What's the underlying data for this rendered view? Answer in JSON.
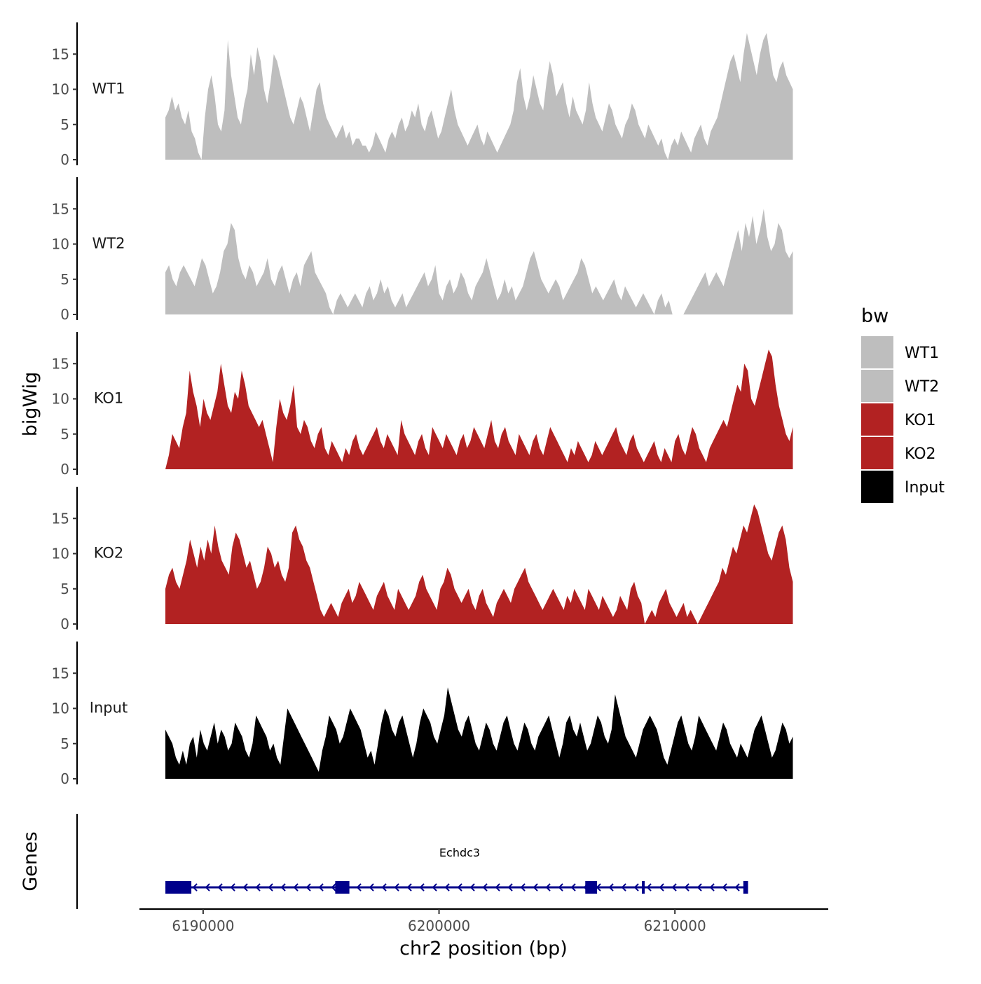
{
  "chart_data": {
    "type": "area",
    "title": "",
    "ylabel": "bigWig",
    "xlabel": "chr2 position (bp)",
    "xlim": [
      6187300,
      6216500
    ],
    "ylim": [
      0,
      19.5
    ],
    "yticks": [
      0,
      5,
      10,
      15
    ],
    "xticks": [
      6190000,
      6200000,
      6210000
    ],
    "x_start": 6188400,
    "x_end": 6215000,
    "legend": {
      "title": "bw",
      "placement": "right",
      "entries": [
        {
          "name": "WT1",
          "color": "#bebebe"
        },
        {
          "name": "WT2",
          "color": "#bebebe"
        },
        {
          "name": "KO1",
          "color": "#b22222"
        },
        {
          "name": "KO2",
          "color": "#b22222"
        },
        {
          "name": "Input",
          "color": "#000000"
        }
      ]
    },
    "series": [
      {
        "name": "WT1",
        "color": "#bebebe",
        "values": [
          6,
          7,
          9,
          7,
          8,
          6,
          5,
          7,
          4,
          3,
          1,
          0,
          6,
          10,
          12,
          9,
          5,
          4,
          7,
          17,
          12,
          9,
          6,
          5,
          8,
          10,
          15,
          12,
          16,
          14,
          10,
          8,
          11,
          15,
          14,
          12,
          10,
          8,
          6,
          5,
          7,
          9,
          8,
          6,
          4,
          7,
          10,
          11,
          8,
          6,
          5,
          4,
          3,
          4,
          5,
          3,
          4,
          2,
          3,
          3,
          2,
          2,
          1,
          2,
          4,
          3,
          2,
          1,
          3,
          4,
          3,
          5,
          6,
          4,
          5,
          7,
          6,
          8,
          5,
          4,
          6,
          7,
          5,
          3,
          4,
          6,
          8,
          10,
          7,
          5,
          4,
          3,
          2,
          3,
          4,
          5,
          3,
          2,
          4,
          3,
          2,
          1,
          2,
          3,
          4,
          5,
          7,
          11,
          13,
          9,
          7,
          9,
          12,
          10,
          8,
          7,
          11,
          14,
          12,
          9,
          10,
          11,
          8,
          6,
          9,
          7,
          6,
          5,
          7,
          11,
          8,
          6,
          5,
          4,
          6,
          8,
          7,
          5,
          4,
          3,
          5,
          6,
          8,
          7,
          5,
          4,
          3,
          5,
          4,
          3,
          2,
          3,
          1,
          0,
          2,
          3,
          2,
          4,
          3,
          2,
          1,
          3,
          4,
          5,
          3,
          2,
          4,
          5,
          6,
          8,
          10,
          12,
          14,
          15,
          13,
          11,
          15,
          18,
          16,
          14,
          12,
          15,
          17,
          18,
          15,
          12,
          11,
          13,
          14,
          12,
          11,
          10
        ]
      },
      {
        "name": "WT2",
        "color": "#bebebe",
        "values": [
          6,
          7,
          5,
          4,
          6,
          7,
          6,
          5,
          4,
          6,
          8,
          7,
          5,
          3,
          4,
          6,
          9,
          10,
          13,
          12,
          8,
          6,
          5,
          7,
          6,
          4,
          5,
          6,
          8,
          5,
          4,
          6,
          7,
          5,
          3,
          5,
          6,
          4,
          7,
          8,
          9,
          6,
          5,
          4,
          3,
          1,
          0,
          2,
          3,
          2,
          1,
          2,
          3,
          2,
          1,
          3,
          4,
          2,
          3,
          5,
          3,
          4,
          2,
          1,
          2,
          3,
          1,
          2,
          3,
          4,
          5,
          6,
          4,
          5,
          7,
          3,
          2,
          4,
          5,
          3,
          4,
          6,
          5,
          3,
          2,
          4,
          5,
          6,
          8,
          6,
          4,
          2,
          3,
          5,
          3,
          4,
          2,
          3,
          4,
          6,
          8,
          9,
          7,
          5,
          4,
          3,
          4,
          5,
          4,
          2,
          3,
          4,
          5,
          6,
          8,
          7,
          5,
          3,
          4,
          3,
          2,
          3,
          4,
          5,
          3,
          2,
          4,
          3,
          2,
          1,
          2,
          3,
          2,
          1,
          0,
          2,
          3,
          1,
          2,
          0,
          0,
          0,
          0,
          1,
          2,
          3,
          4,
          5,
          6,
          4,
          5,
          6,
          5,
          4,
          6,
          8,
          10,
          12,
          9,
          13,
          11,
          14,
          10,
          12,
          15,
          11,
          9,
          10,
          13,
          12,
          9,
          8,
          9
        ]
      },
      {
        "name": "KO1",
        "color": "#b22222",
        "values": [
          0,
          2,
          5,
          4,
          3,
          6,
          8,
          14,
          11,
          9,
          6,
          10,
          8,
          7,
          9,
          11,
          15,
          12,
          9,
          8,
          11,
          10,
          14,
          12,
          9,
          8,
          7,
          6,
          7,
          5,
          3,
          1,
          6,
          10,
          8,
          7,
          9,
          12,
          6,
          5,
          7,
          6,
          4,
          3,
          5,
          6,
          3,
          2,
          4,
          3,
          2,
          1,
          3,
          2,
          4,
          5,
          3,
          2,
          3,
          4,
          5,
          6,
          4,
          3,
          5,
          4,
          3,
          2,
          7,
          5,
          4,
          3,
          2,
          4,
          5,
          3,
          2,
          6,
          5,
          4,
          3,
          5,
          4,
          3,
          2,
          4,
          5,
          3,
          4,
          6,
          5,
          4,
          3,
          5,
          7,
          4,
          3,
          5,
          6,
          4,
          3,
          2,
          5,
          4,
          3,
          2,
          4,
          5,
          3,
          2,
          4,
          6,
          5,
          4,
          3,
          2,
          1,
          3,
          2,
          4,
          3,
          2,
          1,
          2,
          4,
          3,
          2,
          3,
          4,
          5,
          6,
          4,
          3,
          2,
          4,
          5,
          3,
          2,
          1,
          2,
          3,
          4,
          2,
          1,
          3,
          2,
          1,
          4,
          5,
          3,
          2,
          4,
          6,
          5,
          3,
          2,
          1,
          3,
          4,
          5,
          6,
          7,
          6,
          8,
          10,
          12,
          11,
          15,
          14,
          10,
          9,
          11,
          13,
          15,
          17,
          16,
          12,
          9,
          7,
          5,
          4,
          6
        ]
      },
      {
        "name": "KO2",
        "color": "#b22222",
        "values": [
          5,
          7,
          8,
          6,
          5,
          7,
          9,
          12,
          10,
          8,
          11,
          9,
          12,
          10,
          14,
          11,
          9,
          8,
          7,
          11,
          13,
          12,
          10,
          8,
          9,
          7,
          5,
          6,
          8,
          11,
          10,
          8,
          9,
          7,
          6,
          8,
          13,
          14,
          12,
          11,
          9,
          8,
          6,
          4,
          2,
          1,
          2,
          3,
          2,
          1,
          3,
          4,
          5,
          3,
          4,
          6,
          5,
          4,
          3,
          2,
          4,
          5,
          6,
          4,
          3,
          2,
          5,
          4,
          3,
          2,
          3,
          4,
          6,
          7,
          5,
          4,
          3,
          2,
          5,
          6,
          8,
          7,
          5,
          4,
          3,
          4,
          5,
          3,
          2,
          4,
          5,
          3,
          2,
          1,
          3,
          4,
          5,
          4,
          3,
          5,
          6,
          7,
          8,
          6,
          5,
          4,
          3,
          2,
          3,
          4,
          5,
          4,
          3,
          2,
          4,
          3,
          5,
          4,
          3,
          2,
          5,
          4,
          3,
          2,
          4,
          3,
          2,
          1,
          2,
          4,
          3,
          2,
          5,
          6,
          4,
          3,
          0,
          1,
          2,
          1,
          3,
          4,
          5,
          3,
          2,
          1,
          2,
          3,
          1,
          2,
          1,
          0,
          1,
          2,
          3,
          4,
          5,
          6,
          8,
          7,
          9,
          11,
          10,
          12,
          14,
          13,
          15,
          17,
          16,
          14,
          12,
          10,
          9,
          11,
          13,
          14,
          12,
          8,
          6
        ]
      },
      {
        "name": "Input",
        "color": "#000000",
        "values": [
          7,
          6,
          5,
          3,
          2,
          4,
          2,
          5,
          6,
          3,
          7,
          5,
          4,
          6,
          8,
          5,
          7,
          6,
          4,
          5,
          8,
          7,
          6,
          4,
          3,
          5,
          9,
          8,
          7,
          6,
          4,
          5,
          3,
          2,
          6,
          10,
          9,
          8,
          7,
          6,
          5,
          4,
          3,
          2,
          1,
          4,
          6,
          9,
          8,
          7,
          5,
          6,
          8,
          10,
          9,
          8,
          7,
          5,
          3,
          4,
          2,
          5,
          8,
          10,
          9,
          7,
          6,
          8,
          9,
          7,
          5,
          3,
          5,
          8,
          10,
          9,
          8,
          6,
          5,
          7,
          9,
          13,
          11,
          9,
          7,
          6,
          8,
          9,
          7,
          5,
          4,
          6,
          8,
          7,
          5,
          4,
          6,
          8,
          9,
          7,
          5,
          4,
          6,
          8,
          7,
          5,
          4,
          6,
          7,
          8,
          9,
          7,
          5,
          3,
          5,
          8,
          9,
          7,
          6,
          8,
          6,
          4,
          5,
          7,
          9,
          8,
          6,
          5,
          7,
          12,
          10,
          8,
          6,
          5,
          4,
          3,
          5,
          7,
          8,
          9,
          8,
          7,
          5,
          3,
          2,
          4,
          6,
          8,
          9,
          7,
          5,
          4,
          6,
          9,
          8,
          7,
          6,
          5,
          4,
          6,
          8,
          7,
          5,
          4,
          3,
          5,
          4,
          3,
          5,
          7,
          8,
          9,
          7,
          5,
          3,
          4,
          6,
          8,
          7,
          5,
          6
        ]
      }
    ],
    "gene": {
      "track_label": "Genes",
      "name": "Echdc3",
      "strand": "-",
      "color": "#00008b",
      "start": 6188400,
      "end": 6213100,
      "exons": [
        {
          "start": 6188400,
          "end": 6189500
        },
        {
          "start": 6195600,
          "end": 6196200
        },
        {
          "start": 6206200,
          "end": 6206700
        },
        {
          "start": 6208600,
          "end": 6208700
        },
        {
          "start": 6212900,
          "end": 6213100
        }
      ]
    }
  }
}
